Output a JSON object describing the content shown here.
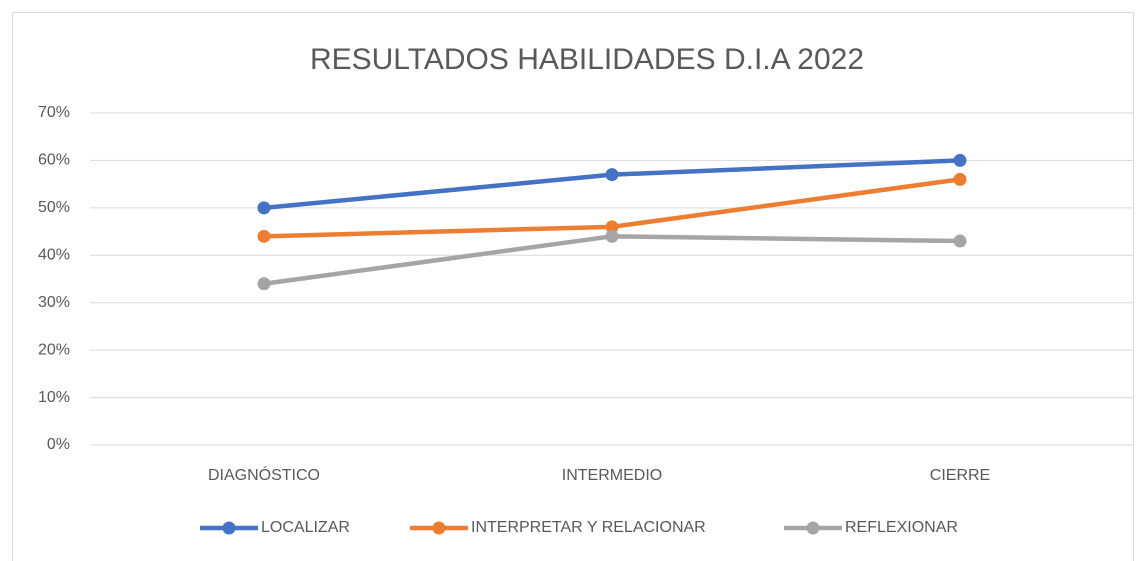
{
  "chart_data": {
    "type": "line",
    "title": "RESULTADOS HABILIDADES D.I.A 2022",
    "categories": [
      "DIAGNÓSTICO",
      "INTERMEDIO",
      "CIERRE"
    ],
    "series": [
      {
        "name": "LOCALIZAR",
        "color": "#4472c4",
        "values": [
          50,
          57,
          60
        ]
      },
      {
        "name": "INTERPRETAR Y RELACIONAR",
        "color": "#ed7d31",
        "values": [
          44,
          46,
          56
        ]
      },
      {
        "name": "REFLEXIONAR",
        "color": "#a5a5a5",
        "values": [
          34,
          44,
          43
        ]
      }
    ],
    "ylim": [
      0,
      70
    ],
    "yticks": [
      {
        "value": 0,
        "label": "0%"
      },
      {
        "value": 10,
        "label": "10%"
      },
      {
        "value": 20,
        "label": "20%"
      },
      {
        "value": 30,
        "label": "30%"
      },
      {
        "value": 40,
        "label": "40%"
      },
      {
        "value": 50,
        "label": "50%"
      },
      {
        "value": 60,
        "label": "60%"
      },
      {
        "value": 70,
        "label": "70%"
      }
    ],
    "grid": true,
    "legend": "bottom"
  }
}
